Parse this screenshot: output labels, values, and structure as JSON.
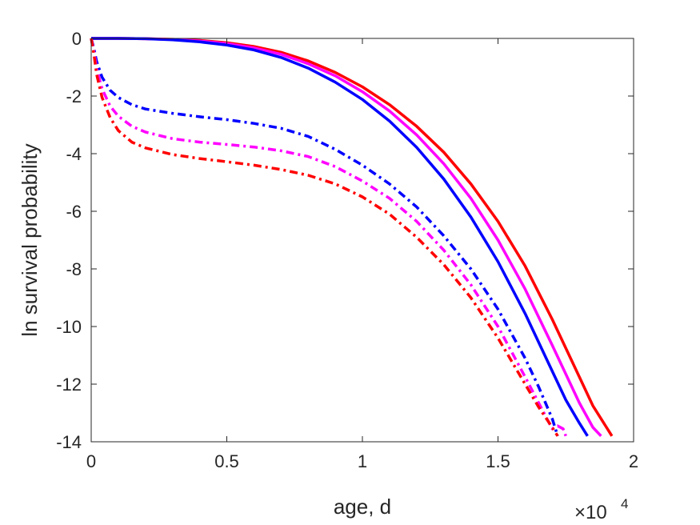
{
  "chart_data": {
    "type": "line",
    "title": "",
    "xlabel": "age, d",
    "ylabel": "ln survival probability",
    "x_multiplier": {
      "base": "×10",
      "exponent": "4"
    },
    "xlim": [
      0,
      20000
    ],
    "ylim": [
      -14,
      0
    ],
    "xticks": [
      0,
      5000,
      10000,
      15000,
      20000
    ],
    "xtick_labels": [
      "0",
      "0.5",
      "1",
      "1.5",
      "2"
    ],
    "yticks": [
      0,
      -2,
      -4,
      -6,
      -8,
      -10,
      -12,
      -14
    ],
    "ytick_labels": [
      "0",
      "-2",
      "-4",
      "-6",
      "-8",
      "-10",
      "-12",
      "-14"
    ],
    "grid": false,
    "legend": "none",
    "series": [
      {
        "color": "#ff0000",
        "style": "solid",
        "x": [
          0,
          1000,
          2000,
          3000,
          4000,
          5000,
          6000,
          7000,
          8000,
          9000,
          10000,
          11000,
          12000,
          13000,
          14000,
          15000,
          16000,
          17000,
          18000,
          18500,
          18800,
          19000,
          19200
        ],
        "y": [
          0,
          0,
          -0.01,
          -0.03,
          -0.07,
          -0.15,
          -0.28,
          -0.48,
          -0.78,
          -1.18,
          -1.68,
          -2.3,
          -3.05,
          -3.95,
          -5.05,
          -6.35,
          -7.9,
          -9.75,
          -11.75,
          -12.75,
          -13.2,
          -13.5,
          -13.8
        ]
      },
      {
        "color": "#ff00ff",
        "style": "solid",
        "x": [
          0,
          1000,
          2000,
          3000,
          4000,
          5000,
          6000,
          7000,
          8000,
          9000,
          10000,
          11000,
          12000,
          13000,
          14000,
          15000,
          16000,
          17000,
          18000,
          18500,
          18800
        ],
        "y": [
          0,
          0,
          -0.01,
          -0.04,
          -0.09,
          -0.18,
          -0.33,
          -0.55,
          -0.88,
          -1.3,
          -1.85,
          -2.52,
          -3.35,
          -4.35,
          -5.55,
          -7.0,
          -8.7,
          -10.65,
          -12.65,
          -13.5,
          -13.8
        ]
      },
      {
        "color": "#0000ff",
        "style": "solid",
        "x": [
          0,
          1000,
          2000,
          3000,
          4000,
          5000,
          6000,
          7000,
          8000,
          9000,
          10000,
          11000,
          12000,
          13000,
          14000,
          15000,
          16000,
          17000,
          17500,
          18000,
          18300
        ],
        "y": [
          0,
          0,
          -0.01,
          -0.05,
          -0.12,
          -0.23,
          -0.4,
          -0.66,
          -1.03,
          -1.52,
          -2.12,
          -2.87,
          -3.78,
          -4.88,
          -6.2,
          -7.75,
          -9.55,
          -11.55,
          -12.55,
          -13.35,
          -13.8
        ]
      },
      {
        "color": "#0000ff",
        "style": "dashdot",
        "x": [
          0,
          100,
          200,
          400,
          700,
          1000,
          1500,
          2000,
          3000,
          4000,
          5000,
          6000,
          7000,
          8000,
          9000,
          10000,
          11000,
          12000,
          13000,
          14000,
          15000,
          16000,
          16500,
          17000,
          17200
        ],
        "y": [
          0,
          -0.35,
          -0.8,
          -1.35,
          -1.8,
          -2.05,
          -2.3,
          -2.45,
          -2.6,
          -2.72,
          -2.82,
          -2.95,
          -3.12,
          -3.4,
          -3.85,
          -4.4,
          -5.05,
          -5.85,
          -6.85,
          -8.0,
          -9.4,
          -11.1,
          -12.1,
          -13.2,
          -13.8
        ]
      },
      {
        "color": "#ff00ff",
        "style": "dashdot",
        "x": [
          0,
          100,
          200,
          400,
          700,
          1000,
          1500,
          2000,
          3000,
          4000,
          5000,
          6000,
          7000,
          8000,
          9000,
          10000,
          11000,
          12000,
          13000,
          14000,
          15000,
          16000,
          17000,
          17200,
          17400,
          17500
        ],
        "y": [
          0,
          -0.45,
          -1.05,
          -1.75,
          -2.35,
          -2.7,
          -3.05,
          -3.25,
          -3.48,
          -3.6,
          -3.68,
          -3.77,
          -3.9,
          -4.1,
          -4.45,
          -4.95,
          -5.55,
          -6.35,
          -7.35,
          -8.55,
          -10.0,
          -11.75,
          -13.55,
          -13.45,
          -13.55,
          -13.8
        ]
      },
      {
        "color": "#ff0000",
        "style": "dashdot",
        "x": [
          0,
          100,
          200,
          400,
          700,
          1000,
          1500,
          2000,
          3000,
          4000,
          5000,
          6000,
          7000,
          8000,
          9000,
          10000,
          11000,
          12000,
          13000,
          14000,
          15000,
          16000,
          16500,
          17000,
          17200
        ],
        "y": [
          0,
          -0.55,
          -1.25,
          -2.05,
          -2.75,
          -3.2,
          -3.6,
          -3.8,
          -4.03,
          -4.17,
          -4.28,
          -4.4,
          -4.55,
          -4.75,
          -5.05,
          -5.5,
          -6.1,
          -6.9,
          -7.85,
          -9.0,
          -10.4,
          -12.0,
          -12.8,
          -13.5,
          -13.8
        ]
      }
    ]
  }
}
